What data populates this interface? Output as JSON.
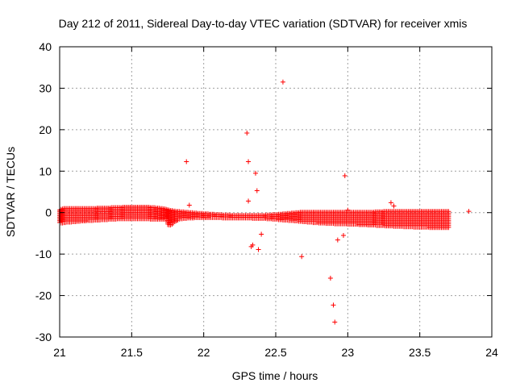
{
  "chart_data": {
    "type": "scatter",
    "title": "Day 212 of 2011, Sidereal Day-to-day VTEC variation (SDTVAR) for receiver xmis",
    "xlabel": "GPS time / hours",
    "ylabel": "SDTVAR / TECUs",
    "xlim": [
      21,
      24
    ],
    "ylim": [
      -30,
      40
    ],
    "grid": true,
    "marker": "+",
    "color": "#ff0000",
    "x_ticks": [
      {
        "value": 21,
        "label": "21"
      },
      {
        "value": 21.5,
        "label": "21.5"
      },
      {
        "value": 22,
        "label": "22"
      },
      {
        "value": 22.5,
        "label": "22.5"
      },
      {
        "value": 23,
        "label": "23"
      },
      {
        "value": 23.5,
        "label": "23.5"
      },
      {
        "value": 24,
        "label": "24"
      }
    ],
    "y_ticks": [
      {
        "value": 40,
        "label": "40"
      },
      {
        "value": 30,
        "label": "30"
      },
      {
        "value": 20,
        "label": "20"
      },
      {
        "value": 10,
        "label": "10"
      },
      {
        "value": 0,
        "label": "0"
      },
      {
        "value": -10,
        "label": "-10"
      },
      {
        "value": -20,
        "label": "-20"
      },
      {
        "value": -30,
        "label": "-30"
      }
    ],
    "dense_band": {
      "x_start": 21.0,
      "x_step": 0.01,
      "y_min": [
        -2.6,
        -2.5,
        -2.5,
        -2.4,
        -2.4,
        -2.3,
        -2.3,
        -2.3,
        -2.3,
        -2.2,
        -2.2,
        -2.2,
        -2.1,
        -2.1,
        -2.1,
        -2.0,
        -2.0,
        -2.0,
        -2.0,
        -1.9,
        -1.9,
        -1.9,
        -1.9,
        -1.9,
        -1.8,
        -1.8,
        -1.8,
        -1.8,
        -1.8,
        -1.7,
        -1.7,
        -1.7,
        -1.7,
        -1.7,
        -1.6,
        -1.6,
        -1.6,
        -1.6,
        -1.6,
        -1.6,
        -1.5,
        -1.5,
        -1.5,
        -1.5,
        -1.5,
        -1.5,
        -1.5,
        -1.5,
        -1.5,
        -1.5,
        -1.5,
        -1.5,
        -1.5,
        -1.5,
        -1.5,
        -1.5,
        -1.5,
        -1.5,
        -1.5,
        -1.5,
        -1.5,
        -1.5,
        -1.5,
        -1.6,
        -1.6,
        -1.6,
        -1.6,
        -1.6,
        -1.6,
        -1.6,
        -1.6,
        -1.6,
        -1.6,
        -1.6,
        -1.6,
        -2.9,
        -3.0,
        -3.0,
        -2.8,
        -2.5,
        -2.2,
        -2.0,
        -1.8,
        -1.6,
        -1.5,
        -1.5,
        -1.4,
        -1.4,
        -1.4,
        -1.3,
        -1.3,
        -1.3,
        -1.3,
        -1.3,
        -1.2,
        -1.2,
        -1.2,
        -1.2,
        -1.2,
        -1.2,
        -1.2,
        -1.2,
        -1.2,
        -1.2,
        -1.2,
        -1.2,
        -1.2,
        -1.2,
        -1.2,
        -1.2,
        -1.2,
        -1.2,
        -1.2,
        -1.3,
        -1.3,
        -1.3,
        -1.3,
        -1.3,
        -1.3,
        -1.3,
        -1.3,
        -1.3,
        -1.3,
        -1.3,
        -1.3,
        -1.3,
        -1.3,
        -1.3,
        -1.3,
        -1.3,
        -1.3,
        -1.3,
        -1.3,
        -1.3,
        -1.4,
        -1.4,
        -1.4,
        -1.4,
        -1.4,
        -1.4,
        -1.4,
        -1.4,
        -1.4,
        -1.4,
        -1.5,
        -1.5,
        -1.5,
        -1.5,
        -1.6,
        -1.6,
        -1.6,
        -1.6,
        -1.7,
        -1.7,
        -1.7,
        -1.8,
        -1.8,
        -1.8,
        -1.8,
        -1.9,
        -1.9,
        -1.9,
        -1.9,
        -2.0,
        -2.0,
        -2.0,
        -2.1,
        -2.1,
        -2.1,
        -2.2,
        -2.2,
        -2.2,
        -2.3,
        -2.3,
        -2.3,
        -2.3,
        -2.4,
        -2.4,
        -2.4,
        -2.4,
        -2.5,
        -2.5,
        -2.5,
        -2.5,
        -2.5,
        -2.6,
        -2.6,
        -2.6,
        -2.6,
        -2.6,
        -2.6,
        -2.7,
        -2.7,
        -2.7,
        -2.7,
        -2.7,
        -2.7,
        -2.7,
        -2.7,
        -2.7,
        -2.8,
        -2.8,
        -2.8,
        -2.8,
        -2.8,
        -2.8,
        -2.8,
        -2.8,
        -2.9,
        -2.9,
        -2.9,
        -2.9,
        -2.9,
        -2.9,
        -3.0,
        -3.0,
        -3.0,
        -3.0,
        -3.0,
        -3.0,
        -3.1,
        -3.1,
        -3.1,
        -3.1,
        -3.1,
        -3.1,
        -3.2,
        -3.2,
        -3.2,
        -3.2,
        -3.2,
        -3.2,
        -3.3,
        -3.3,
        -3.3,
        -3.3,
        -3.3,
        -3.3,
        -3.3,
        -3.4,
        -3.4,
        -3.4,
        -3.4,
        -3.4,
        -3.4,
        -3.4,
        -3.5,
        -3.5,
        -3.5,
        -3.5,
        -3.5,
        -3.5,
        -3.5,
        -3.5,
        -3.5,
        -3.5,
        -3.5,
        -3.6,
        -3.6,
        -3.6,
        -3.6,
        -3.6,
        -3.6,
        -3.6,
        -3.6,
        -3.6,
        -3.6,
        -3.6,
        -3.6,
        -3.6,
        -3.6
      ],
      "y_max": [
        0.6,
        0.8,
        0.9,
        1.0,
        1.0,
        1.0,
        1.0,
        1.0,
        1.0,
        1.0,
        1.0,
        1.0,
        1.0,
        1.0,
        1.0,
        1.0,
        1.0,
        1.0,
        1.0,
        1.0,
        1.0,
        1.0,
        1.0,
        1.0,
        1.0,
        1.0,
        1.1,
        1.1,
        1.1,
        1.1,
        1.1,
        1.1,
        1.1,
        1.1,
        1.1,
        1.1,
        1.2,
        1.2,
        1.2,
        1.2,
        1.2,
        1.2,
        1.2,
        1.2,
        1.3,
        1.3,
        1.3,
        1.3,
        1.3,
        1.3,
        1.3,
        1.3,
        1.3,
        1.3,
        1.3,
        1.3,
        1.3,
        1.3,
        1.3,
        1.3,
        1.3,
        1.3,
        1.3,
        1.2,
        1.2,
        1.2,
        1.2,
        1.1,
        1.1,
        1.1,
        1.0,
        1.0,
        0.9,
        0.9,
        0.8,
        0.7,
        0.6,
        0.5,
        0.5,
        0.4,
        0.4,
        0.3,
        0.3,
        0.3,
        0.2,
        0.2,
        0.2,
        0.1,
        0.1,
        0.1,
        0.0,
        0.0,
        0.0,
        -0.1,
        -0.1,
        -0.1,
        -0.2,
        -0.2,
        -0.2,
        -0.2,
        -0.3,
        -0.3,
        -0.3,
        -0.3,
        -0.4,
        -0.4,
        -0.4,
        -0.4,
        -0.5,
        -0.5,
        -0.5,
        -0.5,
        -0.5,
        -0.6,
        -0.6,
        -0.6,
        -0.6,
        -0.6,
        -0.6,
        -0.7,
        -0.7,
        -0.7,
        -0.7,
        -0.7,
        -0.7,
        -0.7,
        -0.7,
        -0.7,
        -0.7,
        -0.7,
        -0.7,
        -0.7,
        -0.7,
        -0.7,
        -0.7,
        -0.7,
        -0.7,
        -0.7,
        -0.7,
        -0.7,
        -0.7,
        -0.7,
        -0.7,
        -0.6,
        -0.6,
        -0.6,
        -0.6,
        -0.6,
        -0.5,
        -0.5,
        -0.5,
        -0.5,
        -0.4,
        -0.4,
        -0.4,
        -0.3,
        -0.3,
        -0.3,
        -0.2,
        -0.2,
        -0.2,
        -0.1,
        -0.1,
        -0.1,
        0.0,
        0.0,
        0.0,
        0.1,
        0.1,
        0.1,
        0.1,
        0.1,
        0.1,
        0.1,
        0.1,
        0.1,
        0.1,
        0.1,
        0.1,
        0.1,
        0.1,
        0.1,
        0.1,
        0.1,
        0.1,
        0.1,
        0.1,
        0.1,
        0.1,
        0.1,
        0.1,
        0.1,
        0.1,
        0.1,
        0.1,
        0.1,
        0.1,
        0.1,
        0.1,
        0.1,
        0.1,
        0.1,
        0.1,
        0.1,
        0.1,
        0.1,
        0.1,
        0.1,
        0.1,
        0.1,
        0.1,
        0.1,
        0.1,
        0.1,
        0.1,
        0.1,
        0.1,
        0.1,
        0.1,
        0.2,
        0.2,
        0.2,
        0.2,
        0.2,
        0.2,
        0.3,
        0.3,
        0.3,
        0.3,
        0.3,
        0.3,
        0.3,
        0.3,
        0.3,
        0.3,
        0.3,
        0.3,
        0.3,
        0.3,
        0.3,
        0.3,
        0.3,
        0.3,
        0.3,
        0.3,
        0.3,
        0.3,
        0.3,
        0.3,
        0.3,
        0.3,
        0.3,
        0.3,
        0.3,
        0.3,
        0.3,
        0.3,
        0.3,
        0.3,
        0.3,
        0.3,
        0.3,
        0.3,
        0.3,
        0.3,
        0.3,
        0.3,
        0.3,
        0.3,
        0.3,
        0.3,
        0.3,
        0.3,
        0.3,
        0.3,
        0.3,
        0.3,
        0.3,
        0.3,
        0.3
      ]
    },
    "outliers": [
      {
        "x": 21.88,
        "y": 12.3
      },
      {
        "x": 21.9,
        "y": 1.8
      },
      {
        "x": 22.3,
        "y": 19.2
      },
      {
        "x": 22.31,
        "y": 12.3
      },
      {
        "x": 22.31,
        "y": 2.8
      },
      {
        "x": 22.33,
        "y": -8.2
      },
      {
        "x": 22.34,
        "y": -7.8
      },
      {
        "x": 22.36,
        "y": 9.5
      },
      {
        "x": 22.37,
        "y": 5.3
      },
      {
        "x": 22.38,
        "y": -8.9
      },
      {
        "x": 22.4,
        "y": -5.2
      },
      {
        "x": 22.55,
        "y": 31.5
      },
      {
        "x": 22.68,
        "y": -10.6
      },
      {
        "x": 22.88,
        "y": -15.8
      },
      {
        "x": 22.9,
        "y": -22.3
      },
      {
        "x": 22.91,
        "y": -26.4
      },
      {
        "x": 22.93,
        "y": -6.6
      },
      {
        "x": 22.97,
        "y": -5.5
      },
      {
        "x": 22.98,
        "y": 8.9
      },
      {
        "x": 23.0,
        "y": 0.6
      },
      {
        "x": 23.3,
        "y": 2.4
      },
      {
        "x": 23.32,
        "y": 1.6
      },
      {
        "x": 23.84,
        "y": 0.3
      }
    ]
  }
}
